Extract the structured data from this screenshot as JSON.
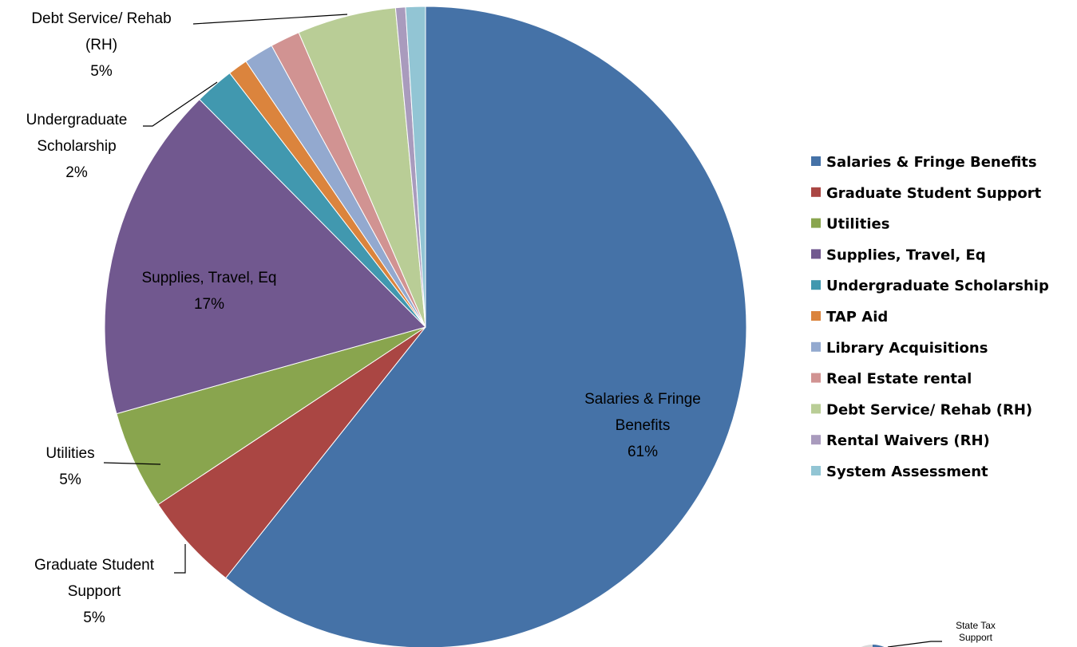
{
  "chart_data": {
    "type": "pie",
    "title": "",
    "slices": [
      {
        "name": "Salaries & Fringe Benefits",
        "value": 61,
        "color": "#4572A7",
        "label_lines": [
          "Salaries & Fringe",
          "Benefits",
          "61%"
        ]
      },
      {
        "name": "Graduate Student Support",
        "value": 5,
        "color": "#AA4643",
        "label_lines": [
          "Graduate Student",
          "Support",
          "5%"
        ]
      },
      {
        "name": "Utilities",
        "value": 5,
        "color": "#89A54E",
        "label_lines": [
          "Utilities",
          "5%"
        ]
      },
      {
        "name": "Supplies, Travel, Eq",
        "value": 17,
        "color": "#71588F",
        "label_lines": [
          "Supplies, Travel, Eq",
          "17%"
        ]
      },
      {
        "name": "Undergraduate Scholarship",
        "value": 2,
        "color": "#4198AF",
        "label_lines": [
          "Undergraduate",
          "Scholarship",
          "2%"
        ]
      },
      {
        "name": "TAP Aid",
        "value": 1,
        "color": "#DB843D",
        "label_lines": []
      },
      {
        "name": "Library Acquisitions",
        "value": 1.5,
        "color": "#93A9CF",
        "label_lines": []
      },
      {
        "name": "Real Estate rental",
        "value": 1.5,
        "color": "#D19392",
        "label_lines": []
      },
      {
        "name": "Debt Service/ Rehab (RH)",
        "value": 5,
        "color": "#B9CD96",
        "label_lines": [
          "Debt Service/ Rehab",
          "(RH)",
          "5%"
        ]
      },
      {
        "name": "Rental Waivers (RH)",
        "value": 0.5,
        "color": "#A99BBD",
        "label_lines": []
      },
      {
        "name": "System Assessment",
        "value": 1,
        "color": "#92C5D4",
        "label_lines": []
      }
    ],
    "legend_position": "right",
    "secondary_label": [
      "State Tax",
      "Support"
    ]
  }
}
